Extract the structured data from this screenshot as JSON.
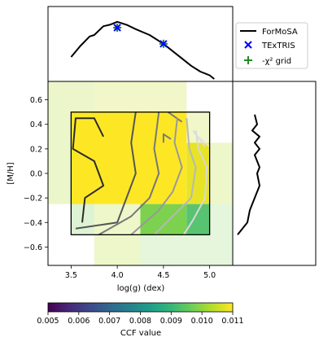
{
  "chart_data": {
    "type": "heatmap",
    "main": {
      "xlabel": "log(g) (dex)",
      "ylabel": "[M/H]",
      "xlim": [
        3.25,
        5.25
      ],
      "ylim": [
        -0.75,
        0.75
      ],
      "x_ticks": [
        "3.5",
        "4.0",
        "4.5",
        "5.0"
      ],
      "y_ticks": [
        "−0.6",
        "−0.4",
        "−0.2",
        "0.0",
        "0.2",
        "0.4",
        "0.6"
      ],
      "heatmap_cells": [
        {
          "x": [
            3.25,
            3.75
          ],
          "y": [
            -0.25,
            0.75
          ],
          "value": 0.0103
        },
        {
          "x": [
            3.75,
            4.75
          ],
          "y": [
            0.25,
            0.75
          ],
          "value": 0.0105
        },
        {
          "x": [
            3.5,
            4.75
          ],
          "y": [
            -0.25,
            0.5
          ],
          "value": 0.011
        },
        {
          "x": [
            4.75,
            5.0
          ],
          "y": [
            0.25,
            0.5
          ],
          "value": 0.0105
        },
        {
          "x": [
            4.75,
            5.0
          ],
          "y": [
            -0.25,
            0.25
          ],
          "value": 0.0108
        },
        {
          "x": [
            5.0,
            5.25
          ],
          "y": [
            -0.25,
            0.25
          ],
          "value": 0.0104
        },
        {
          "x": [
            3.5,
            3.75
          ],
          "y": [
            -0.5,
            -0.25
          ],
          "value": 0.0098
        },
        {
          "x": [
            3.75,
            4.25
          ],
          "y": [
            -0.75,
            -0.25
          ],
          "value": 0.0104
        },
        {
          "x": [
            4.25,
            4.75
          ],
          "y": [
            -0.5,
            -0.25
          ],
          "value": 0.0098
        },
        {
          "x": [
            4.75,
            5.0
          ],
          "y": [
            -0.5,
            -0.25
          ],
          "value": 0.0093
        },
        {
          "x": [
            4.25,
            5.25
          ],
          "y": [
            -0.75,
            -0.5
          ],
          "value": 0.0098
        },
        {
          "x": [
            5.0,
            5.25
          ],
          "y": [
            -0.5,
            -0.25
          ],
          "value": 0.0098
        }
      ],
      "grid_box": {
        "x": [
          3.5,
          5.0
        ],
        "y": [
          -0.5,
          0.5
        ]
      },
      "contours": [
        {
          "color": "#2b2b2b",
          "points": [
            [
              3.85,
              0.3
            ],
            [
              3.75,
              0.45
            ],
            [
              3.55,
              0.45
            ],
            [
              3.52,
              0.2
            ],
            [
              3.75,
              0.1
            ],
            [
              3.85,
              -0.1
            ],
            [
              3.65,
              -0.2
            ],
            [
              3.62,
              -0.4
            ]
          ]
        },
        {
          "color": "#555555",
          "points": [
            [
              4.2,
              0.5
            ],
            [
              4.15,
              0.25
            ],
            [
              4.2,
              0.0
            ],
            [
              4.1,
              -0.2
            ],
            [
              4.0,
              -0.4
            ],
            [
              3.55,
              -0.45
            ]
          ]
        },
        {
          "color": "#777777",
          "points": [
            [
              4.45,
              0.5
            ],
            [
              4.4,
              0.2
            ],
            [
              4.45,
              0.0
            ],
            [
              4.35,
              -0.2
            ],
            [
              4.15,
              -0.35
            ],
            [
              3.8,
              -0.5
            ]
          ]
        },
        {
          "color": "#7a7a7a",
          "points": [
            [
              4.7,
              0.42
            ],
            [
              4.55,
              0.5
            ]
          ]
        },
        {
          "color": "#7a7a7a",
          "points": [
            [
              4.5,
              0.25
            ],
            [
              4.5,
              0.32
            ],
            [
              4.58,
              0.28
            ]
          ]
        },
        {
          "color": "#999999",
          "points": [
            [
              4.65,
              0.45
            ],
            [
              4.62,
              0.25
            ],
            [
              4.7,
              0.05
            ],
            [
              4.6,
              -0.15
            ],
            [
              4.45,
              -0.3
            ],
            [
              4.15,
              -0.5
            ]
          ]
        },
        {
          "color": "#b8b8b8",
          "points": [
            [
              4.75,
              0.45
            ],
            [
              4.78,
              0.2
            ],
            [
              4.85,
              0.05
            ],
            [
              4.8,
              -0.2
            ],
            [
              4.6,
              -0.35
            ],
            [
              4.4,
              -0.5
            ]
          ]
        },
        {
          "color": "#d8d8d8",
          "points": [
            [
              4.85,
              0.35
            ],
            [
              4.88,
              0.2
            ],
            [
              4.97,
              0.05
            ],
            [
              4.95,
              -0.2
            ],
            [
              4.82,
              -0.38
            ],
            [
              4.72,
              -0.5
            ]
          ]
        },
        {
          "color": "#dcdcdc",
          "points": [
            [
              4.82,
              0.35
            ],
            [
              4.95,
              0.22
            ]
          ]
        },
        {
          "color": "#e6e6e6",
          "points": [
            [
              4.88,
              0.3
            ],
            [
              5.0,
              0.22
            ]
          ]
        }
      ]
    },
    "top_panel": {
      "curve": [
        [
          3.5,
          0.3
        ],
        [
          3.6,
          0.45
        ],
        [
          3.7,
          0.58
        ],
        [
          3.75,
          0.6
        ],
        [
          3.85,
          0.72
        ],
        [
          3.92,
          0.74
        ],
        [
          4.0,
          0.78
        ],
        [
          4.1,
          0.74
        ],
        [
          4.2,
          0.68
        ],
        [
          4.35,
          0.6
        ],
        [
          4.5,
          0.48
        ],
        [
          4.6,
          0.38
        ],
        [
          4.7,
          0.28
        ],
        [
          4.8,
          0.18
        ],
        [
          4.9,
          0.1
        ],
        [
          5.0,
          0.05
        ],
        [
          5.05,
          0.0
        ]
      ],
      "texTRIS_markers": [
        [
          4.0,
          0.7
        ],
        [
          4.5,
          0.48
        ]
      ],
      "chi2_markers": [
        [
          4.0,
          0.7
        ],
        [
          4.5,
          0.48
        ]
      ]
    },
    "right_panel": {
      "curve": [
        [
          0.45,
          0.48
        ],
        [
          0.5,
          0.4
        ],
        [
          0.4,
          0.35
        ],
        [
          0.55,
          0.3
        ],
        [
          0.45,
          0.25
        ],
        [
          0.55,
          0.2
        ],
        [
          0.45,
          0.15
        ],
        [
          0.55,
          0.05
        ],
        [
          0.5,
          0.0
        ],
        [
          0.55,
          -0.1
        ],
        [
          0.5,
          -0.15
        ],
        [
          0.45,
          -0.2
        ],
        [
          0.35,
          -0.3
        ],
        [
          0.3,
          -0.4
        ],
        [
          0.2,
          -0.45
        ],
        [
          0.1,
          -0.5
        ]
      ]
    },
    "legend": {
      "placement": "top-right",
      "entries": [
        {
          "label": "ForMoSA",
          "marker": "line",
          "color": "#000000"
        },
        {
          "label": "TExTRIS",
          "marker": "x",
          "color": "#0000ff"
        },
        {
          "label": "-χ² grid",
          "marker": "plus",
          "color": "#228b22"
        }
      ]
    },
    "colorbar": {
      "label": "CCF value",
      "range": [
        0.005,
        0.011
      ],
      "ticks": [
        "0.005",
        "0.006",
        "0.007",
        "0.008",
        "0.009",
        "0.010",
        "0.011"
      ],
      "colormap": [
        "#440154",
        "#482878",
        "#3e4989",
        "#31688e",
        "#26828e",
        "#1f9e89",
        "#35b779",
        "#6ece58",
        "#b5de2b",
        "#fde725"
      ]
    }
  }
}
